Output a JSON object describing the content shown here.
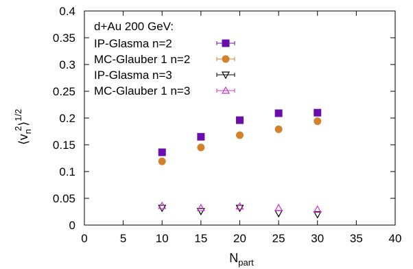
{
  "chart_data": {
    "type": "scatter",
    "title": "",
    "xlabel": "N",
    "xlabel_sub": "part",
    "ylabel_parts": [
      "⟨v",
      "n",
      "2",
      "⟩",
      "1/2"
    ],
    "xlim": [
      0,
      40
    ],
    "ylim": [
      0,
      0.4
    ],
    "xticks": [
      0,
      5,
      10,
      15,
      20,
      25,
      30,
      35,
      40
    ],
    "xtick_labels": [
      "0",
      "5",
      "10",
      "15",
      "20",
      "25",
      "30",
      "35",
      "40"
    ],
    "yticks": [
      0,
      0.05,
      0.1,
      0.15,
      0.2,
      0.25,
      0.3,
      0.35,
      0.4
    ],
    "ytick_labels": [
      "0",
      "0.05",
      "0.1",
      "0.15",
      "0.2",
      "0.25",
      "0.3",
      "0.35",
      "0.4"
    ],
    "grid": false,
    "legend_position": "top-left",
    "legend_title": "d+Au 200 GeV:",
    "series": [
      {
        "name": "IP-Glasma n=2",
        "marker": "filled-square",
        "color": "#6a0dad",
        "x": [
          10,
          15,
          20,
          25,
          30
        ],
        "y": [
          0.136,
          0.165,
          0.196,
          0.209,
          0.21
        ]
      },
      {
        "name": "MC-Glauber 1 n=2",
        "marker": "filled-circle",
        "color": "#d2822a",
        "x": [
          10,
          15,
          20,
          25,
          30
        ],
        "y": [
          0.119,
          0.145,
          0.168,
          0.179,
          0.194
        ]
      },
      {
        "name": "IP-Glasma n=3",
        "marker": "open-triangle-down",
        "color": "#000000",
        "x": [
          10,
          15,
          20,
          25,
          30
        ],
        "y": [
          0.032,
          0.026,
          0.032,
          0.022,
          0.02
        ]
      },
      {
        "name": "MC-Glauber 1 n=3",
        "marker": "open-triangle-up",
        "color": "#cc33cc",
        "x": [
          10,
          15,
          20,
          25,
          30
        ],
        "y": [
          0.036,
          0.032,
          0.035,
          0.032,
          0.029
        ]
      }
    ]
  }
}
